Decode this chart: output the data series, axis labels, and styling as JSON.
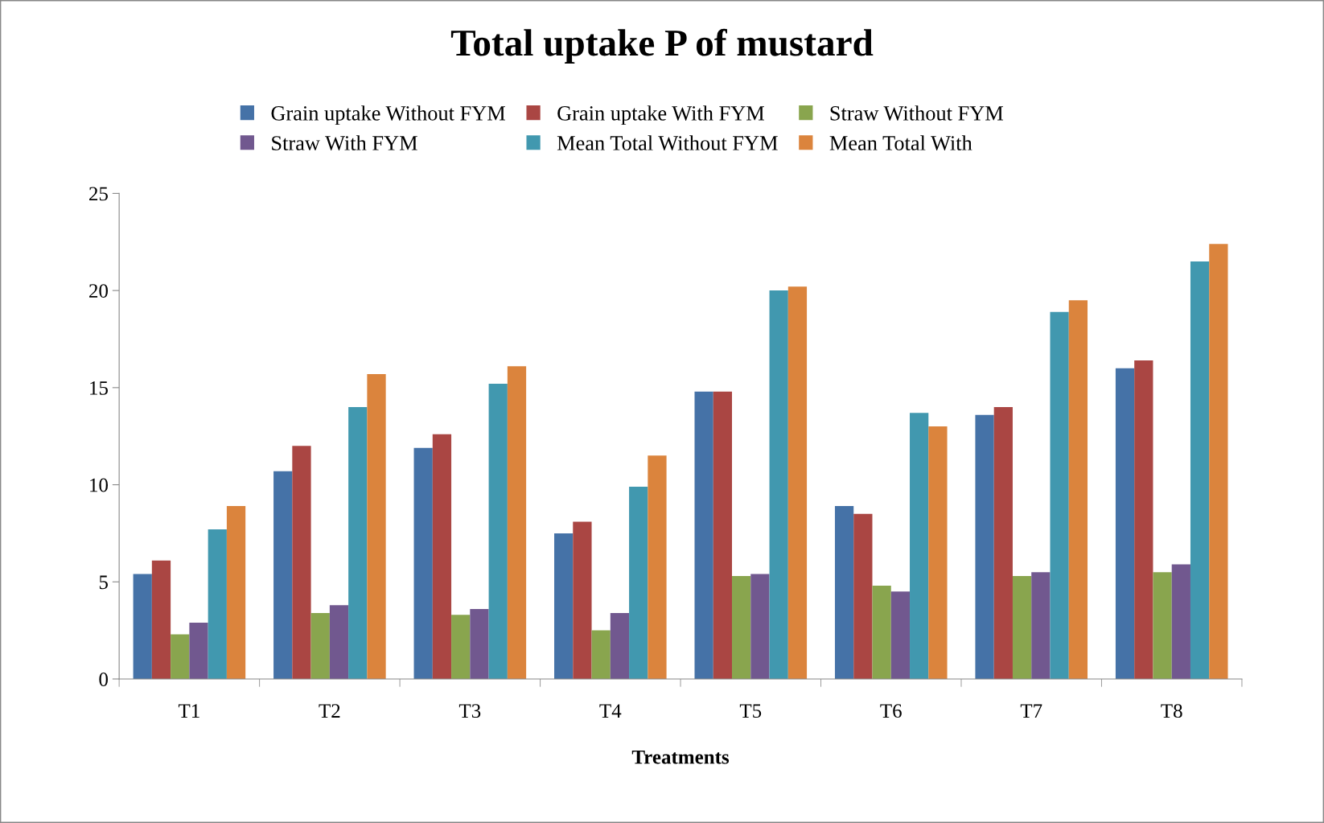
{
  "chart_data": {
    "type": "bar",
    "title": "Total uptake P of mustard",
    "xlabel": "Treatments",
    "categories": [
      "T1",
      "T2",
      "T3",
      "T4",
      "T5",
      "T6",
      "T7",
      "T8"
    ],
    "series": [
      {
        "name": "Grain uptake Without FYM",
        "color": "#4572a7",
        "values": [
          5.4,
          10.7,
          11.9,
          7.5,
          14.8,
          8.9,
          13.6,
          16.0
        ]
      },
      {
        "name": "Grain uptake With FYM",
        "color": "#aa4643",
        "values": [
          6.1,
          12.0,
          12.6,
          8.1,
          14.8,
          8.5,
          14.0,
          16.4
        ]
      },
      {
        "name": "Straw Without FYM",
        "color": "#89a54e",
        "values": [
          2.3,
          3.4,
          3.3,
          2.5,
          5.3,
          4.8,
          5.3,
          5.5
        ]
      },
      {
        "name": "Straw With FYM",
        "color": "#71588f",
        "values": [
          2.9,
          3.8,
          3.6,
          3.4,
          5.4,
          4.5,
          5.5,
          5.9
        ]
      },
      {
        "name": "Mean Total Without FYM",
        "color": "#4198af",
        "values": [
          7.7,
          14.0,
          15.2,
          9.9,
          20.0,
          13.7,
          18.9,
          21.5
        ]
      },
      {
        "name": "Mean Total With",
        "color": "#db843d",
        "values": [
          8.9,
          15.7,
          16.1,
          11.5,
          20.2,
          13.0,
          19.5,
          22.4
        ]
      }
    ],
    "ylim": [
      0,
      25
    ],
    "yticks": [
      0,
      5,
      10,
      15,
      20,
      25
    ],
    "grid": false,
    "legend": "top"
  }
}
